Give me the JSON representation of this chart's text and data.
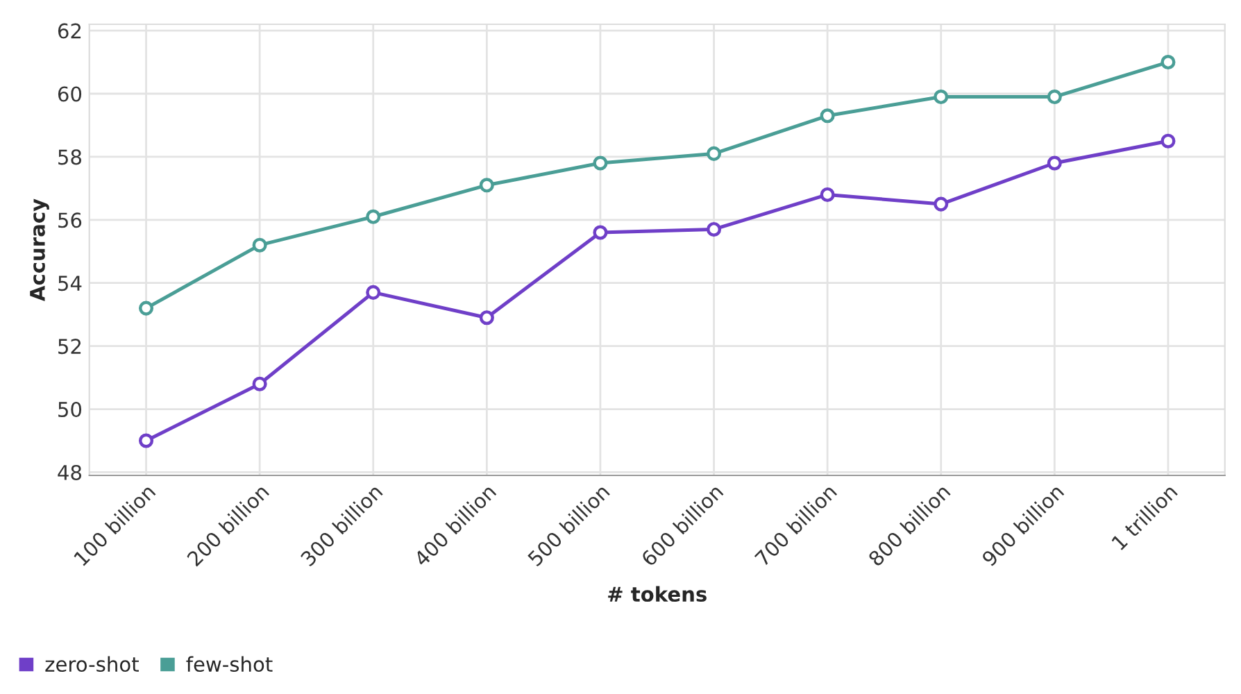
{
  "chart_data": {
    "type": "line",
    "xlabel": "# tokens",
    "ylabel": "Accuracy",
    "categories": [
      "100 billion",
      "200 billion",
      "300 billion",
      "400 billion",
      "500 billion",
      "600 billion",
      "700 billion",
      "800 billion",
      "900 billion",
      "1 trillion"
    ],
    "series": [
      {
        "name": "zero-shot",
        "color": "#6f3fc8",
        "values": [
          49.0,
          50.8,
          53.7,
          52.9,
          55.6,
          55.7,
          56.8,
          56.5,
          57.8,
          58.5
        ]
      },
      {
        "name": "few-shot",
        "color": "#4a9e96",
        "values": [
          53.2,
          55.2,
          56.1,
          57.1,
          57.8,
          58.1,
          59.3,
          59.9,
          59.9,
          61.0
        ]
      }
    ],
    "ylim": [
      47.9,
      62.2
    ],
    "yticks": [
      48,
      50,
      52,
      54,
      56,
      58,
      60,
      62
    ],
    "grid": true,
    "legend": "bottom left",
    "marker": "circle",
    "line_style": "solid"
  }
}
